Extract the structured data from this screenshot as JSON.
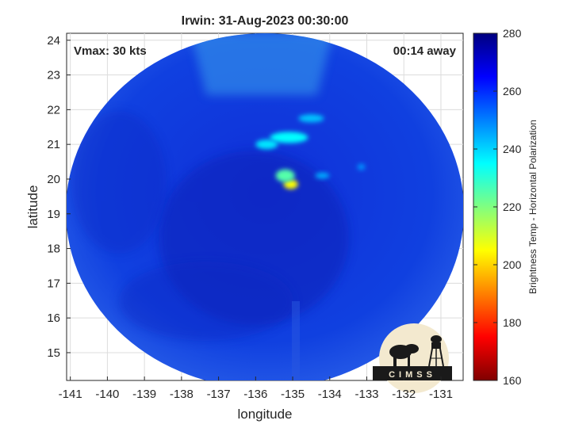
{
  "title": "Irwin: 31-Aug-2023 00:30:00",
  "vmax_label": "Vmax: 30 kts",
  "time_away_label": "00:14 away",
  "logo_text": "CIMSS",
  "chart_data": {
    "type": "heatmap",
    "title": "Irwin: 31-Aug-2023 00:30:00",
    "xlabel": "longitude",
    "ylabel": "latitude",
    "xlim": [
      -141.1,
      -130.4
    ],
    "ylim": [
      14.2,
      24.2
    ],
    "x_ticks": [
      -141,
      -140,
      -139,
      -138,
      -137,
      -136,
      -135,
      -134,
      -133,
      -132,
      -131
    ],
    "y_ticks": [
      15,
      16,
      17,
      18,
      19,
      20,
      21,
      22,
      23,
      24
    ],
    "grid": true,
    "colorbar": {
      "label": "Brightness Temp - Horizontal Polarization",
      "min": 160,
      "max": 280,
      "ticks": [
        160,
        180,
        200,
        220,
        240,
        260,
        280
      ],
      "colormap": "jet",
      "colors": [
        "#7f0000",
        "#ff0000",
        "#ff8000",
        "#ffff00",
        "#80ff80",
        "#00ffff",
        "#0080ff",
        "#0000ff",
        "#00007f"
      ]
    },
    "annotations": [
      "Vmax: 30 kts",
      "00:14 away"
    ],
    "swath_center": [
      -135.8,
      19.2
    ],
    "background_brightness_temp": 262,
    "features": [
      {
        "lon": -135.05,
        "lat": 19.85,
        "brightness_temp": 205
      },
      {
        "lon": -135.2,
        "lat": 20.1,
        "brightness_temp": 225
      },
      {
        "lon": -135.1,
        "lat": 21.2,
        "brightness_temp": 235
      },
      {
        "lon": -135.7,
        "lat": 21.0,
        "brightness_temp": 238
      },
      {
        "lon": -134.5,
        "lat": 21.75,
        "brightness_temp": 242
      },
      {
        "lon": -134.2,
        "lat": 20.1,
        "brightness_temp": 245
      },
      {
        "lon": -133.15,
        "lat": 20.35,
        "brightness_temp": 248
      }
    ]
  }
}
